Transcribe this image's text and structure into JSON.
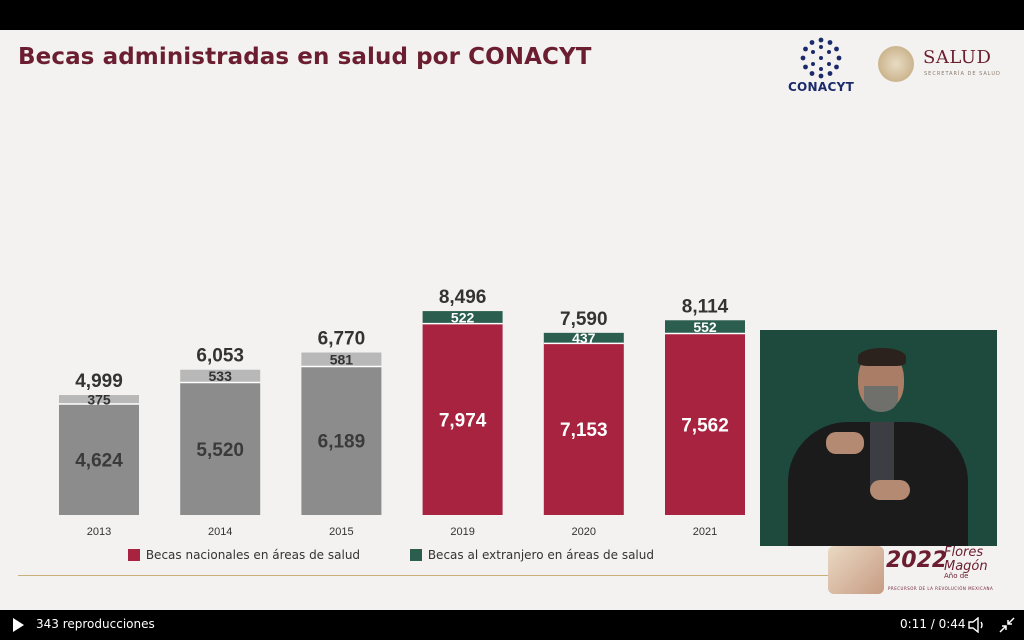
{
  "slide": {
    "title": "Becas administradas en salud por CONACYT",
    "logos": {
      "conacyt": "CONACYT",
      "salud": "SALUD",
      "salud_sub": "SECRETARÍA DE SALUD"
    },
    "banner": {
      "year": "2022",
      "name": "Flores Magón",
      "ano_label": "Año de",
      "tagline": "PRECURSOR DE LA REVOLUCIÓN MEXICANA"
    }
  },
  "chart_data": {
    "type": "bar",
    "stacked": true,
    "title": "Becas administradas en salud por CONACYT",
    "categories": [
      "2013",
      "2014",
      "2015",
      "2019",
      "2020",
      "2021"
    ],
    "series": [
      {
        "name": "Becas nacionales en áreas de salud",
        "values": [
          4624,
          5520,
          6189,
          7974,
          7153,
          7562
        ]
      },
      {
        "name": "Becas al extranjero en áreas de salud",
        "values": [
          375,
          533,
          581,
          522,
          437,
          552
        ]
      }
    ],
    "totals": [
      4999,
      6053,
      6770,
      8496,
      7590,
      8114
    ],
    "value_labels": {
      "totals": [
        "4,999",
        "6,053",
        "6,770",
        "8,496",
        "7,590",
        "8,114"
      ],
      "nacionales": [
        "4,624",
        "5,520",
        "6,189",
        "7,974",
        "7,153",
        "7,562"
      ],
      "extranjero": [
        "375",
        "533",
        "581",
        "522",
        "437",
        "552"
      ]
    },
    "bar_colors": {
      "nacionales_past": "#8d8c8c",
      "extranjero_past": "#b9b8b8",
      "nacionales": "#a8233f",
      "extranjero": "#2b5e4f"
    },
    "legend_position": "bottom",
    "grid": false
  },
  "player": {
    "views": "343 reproducciones",
    "time": "0:11 / 0:44"
  },
  "icons": [
    "play-icon",
    "volume-icon",
    "exit-fullscreen-icon"
  ]
}
